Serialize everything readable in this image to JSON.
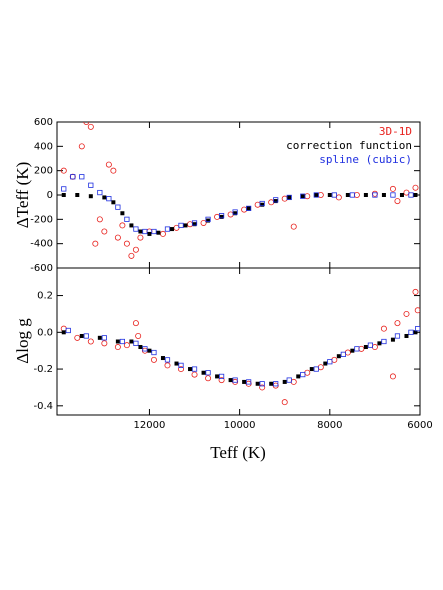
{
  "chart_data": [
    {
      "type": "scatter",
      "ylabel": "ΔTeff (K)",
      "xlim": [
        14050,
        6000
      ],
      "ylim": [
        -600,
        600
      ],
      "yticks": [
        -600,
        -400,
        -200,
        0,
        200,
        400,
        600
      ],
      "legend": "upper right",
      "series": [
        {
          "name": "3D-1D",
          "color": "#e8231f",
          "marker": "open-circle",
          "x": [
            13900,
            13700,
            13500,
            13400,
            13300,
            13200,
            13100,
            13000,
            12900,
            12800,
            12700,
            12600,
            12500,
            12400,
            12300,
            12200,
            12000,
            11700,
            11400,
            11100,
            10800,
            10500,
            10200,
            9900,
            9600,
            9300,
            9000,
            8800,
            8500,
            8200,
            7800,
            7400,
            7000,
            6600,
            6500,
            6300,
            6100
          ],
          "values": [
            200,
            150,
            400,
            600,
            560,
            -400,
            -200,
            -300,
            250,
            200,
            -350,
            -250,
            -400,
            -500,
            -450,
            -350,
            -300,
            -320,
            -270,
            -240,
            -230,
            -180,
            -160,
            -120,
            -80,
            -60,
            -30,
            -260,
            -10,
            0,
            -20,
            0,
            10,
            50,
            -50,
            20,
            60
          ]
        },
        {
          "name": "correction function",
          "color": "#000000",
          "marker": "filled-square",
          "x": [
            13900,
            13600,
            13300,
            13000,
            12800,
            12600,
            12400,
            12200,
            12000,
            11800,
            11500,
            11200,
            11000,
            10700,
            10400,
            10100,
            9800,
            9500,
            9200,
            8900,
            8600,
            8300,
            8000,
            7600,
            7200,
            6800,
            6400,
            6100
          ],
          "values": [
            0,
            0,
            -10,
            -20,
            -60,
            -150,
            -250,
            -300,
            -320,
            -310,
            -280,
            -250,
            -240,
            -210,
            -180,
            -150,
            -110,
            -80,
            -50,
            -20,
            -10,
            0,
            0,
            0,
            0,
            0,
            0,
            0
          ]
        },
        {
          "name": "spline (cubic)",
          "color": "#1f2fe0",
          "marker": "open-square",
          "x": [
            13900,
            13700,
            13500,
            13300,
            13100,
            12900,
            12700,
            12500,
            12300,
            12100,
            11900,
            11600,
            11300,
            11000,
            10700,
            10400,
            10100,
            9800,
            9500,
            9200,
            8900,
            8600,
            8300,
            7900,
            7500,
            7000,
            6600,
            6200
          ],
          "values": [
            50,
            150,
            150,
            80,
            20,
            -30,
            -100,
            -200,
            -280,
            -300,
            -300,
            -280,
            -250,
            -230,
            -200,
            -170,
            -140,
            -110,
            -70,
            -40,
            -20,
            -10,
            0,
            0,
            0,
            0,
            0,
            0
          ]
        }
      ]
    },
    {
      "type": "scatter",
      "ylabel": "Δlog g",
      "xlabel": "Teff (K)",
      "xlim": [
        14050,
        6000
      ],
      "ylim": [
        -0.45,
        0.35
      ],
      "xticks": [
        12000,
        10000,
        8000,
        6000
      ],
      "yticks": [
        -0.4,
        -0.2,
        {
          "value": 0,
          "label": "0.0"
        },
        0.2
      ],
      "series": [
        {
          "color": "#e8231f",
          "marker": "open-circle",
          "x": [
            13900,
            13600,
            13300,
            13000,
            12700,
            12500,
            12300,
            12250,
            12100,
            11900,
            11600,
            11300,
            11000,
            10700,
            10400,
            10100,
            9800,
            9500,
            9200,
            9000,
            8800,
            8500,
            8200,
            7900,
            7600,
            7300,
            7000,
            6800,
            6600,
            6500,
            6300,
            6100,
            6050
          ],
          "values": [
            0.02,
            -0.03,
            -0.05,
            -0.06,
            -0.08,
            -0.07,
            0.05,
            -0.02,
            -0.1,
            -0.15,
            -0.18,
            -0.2,
            -0.23,
            -0.25,
            -0.26,
            -0.27,
            -0.28,
            -0.3,
            -0.29,
            -0.38,
            -0.27,
            -0.22,
            -0.19,
            -0.15,
            -0.11,
            -0.09,
            -0.08,
            0.02,
            -0.24,
            0.05,
            0.1,
            0.22,
            0.12
          ]
        },
        {
          "color": "#000000",
          "marker": "filled-square",
          "x": [
            13900,
            13500,
            13100,
            12700,
            12400,
            12200,
            12000,
            11700,
            11400,
            11100,
            10800,
            10500,
            10200,
            9900,
            9600,
            9300,
            9000,
            8700,
            8400,
            8100,
            7800,
            7500,
            7200,
            6900,
            6600,
            6300,
            6100
          ],
          "values": [
            0,
            -0.02,
            -0.03,
            -0.05,
            -0.05,
            -0.08,
            -0.1,
            -0.14,
            -0.17,
            -0.2,
            -0.22,
            -0.24,
            -0.26,
            -0.27,
            -0.28,
            -0.28,
            -0.27,
            -0.24,
            -0.2,
            -0.17,
            -0.13,
            -0.1,
            -0.08,
            -0.06,
            -0.04,
            -0.02,
            0
          ]
        },
        {
          "color": "#1f2fe0",
          "marker": "open-square",
          "x": [
            13800,
            13400,
            13000,
            12600,
            12300,
            12100,
            11900,
            11600,
            11300,
            11000,
            10700,
            10400,
            10100,
            9800,
            9500,
            9200,
            8900,
            8600,
            8300,
            8000,
            7700,
            7400,
            7100,
            6800,
            6500,
            6200,
            6050
          ],
          "values": [
            0.01,
            -0.02,
            -0.03,
            -0.05,
            -0.06,
            -0.09,
            -0.11,
            -0.15,
            -0.18,
            -0.2,
            -0.22,
            -0.24,
            -0.26,
            -0.27,
            -0.28,
            -0.28,
            -0.26,
            -0.23,
            -0.2,
            -0.16,
            -0.12,
            -0.09,
            -0.07,
            -0.05,
            -0.02,
            0,
            0.02
          ]
        }
      ]
    }
  ]
}
